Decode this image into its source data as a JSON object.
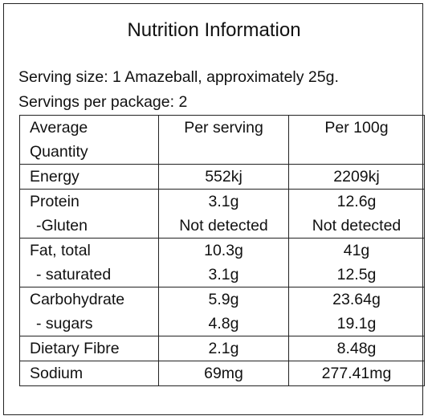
{
  "title": "Nutrition Information",
  "serving_size": "Serving size: 1 Amazeball, approximately 25g.",
  "servings_per_package": "Servings per package: 2",
  "table": {
    "header": [
      "Average Quantity",
      "Per serving",
      "Per 100g"
    ],
    "rows": [
      [
        [
          "Energy",
          "552kj",
          "2209kj"
        ]
      ],
      [
        [
          "Protein",
          "3.1g",
          "12.6g"
        ],
        [
          "-Gluten",
          "Not detected",
          "Not detected"
        ]
      ],
      [
        [
          "Fat, total",
          "10.3g",
          "41g"
        ],
        [
          "- saturated",
          "3.1g",
          "12.5g"
        ]
      ],
      [
        [
          "Carbohydrate",
          "5.9g",
          "23.64g"
        ],
        [
          "- sugars",
          "4.8g",
          "19.1g"
        ]
      ],
      [
        [
          "Dietary Fibre",
          "2.1g",
          "8.48g"
        ]
      ],
      [
        [
          "Sodium",
          "69mg",
          "277.41mg"
        ]
      ]
    ]
  }
}
